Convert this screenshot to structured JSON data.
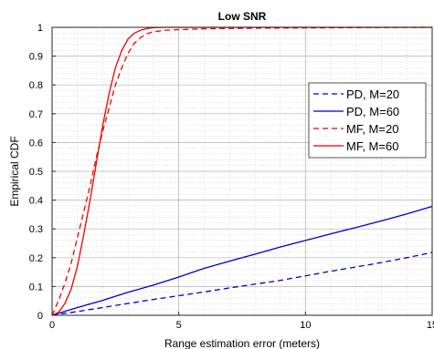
{
  "chart_data": {
    "type": "line",
    "title": "Low SNR",
    "xlabel": "Range estimation error (meters)",
    "ylabel": "Empirical CDF",
    "xlim": [
      0,
      15
    ],
    "ylim": [
      0,
      1
    ],
    "xticks": [
      0,
      5,
      10,
      15
    ],
    "yticks": [
      0,
      0.1,
      0.2,
      0.3,
      0.4,
      0.5,
      0.6,
      0.7,
      0.8,
      0.9,
      1
    ],
    "xtick_labels": [
      "0",
      "5",
      "10",
      "15"
    ],
    "ytick_labels": [
      "0",
      "0.1",
      "0.2",
      "0.3",
      "0.4",
      "0.5",
      "0.6",
      "0.7",
      "0.8",
      "0.9",
      "1"
    ],
    "grid": true,
    "minor_grid": true,
    "legend_position": "right",
    "series": [
      {
        "name": "PD, M=20",
        "color": "#0000cc",
        "dash": "dashed",
        "x": [
          0,
          1,
          2,
          3,
          4,
          5,
          6,
          7,
          8,
          9,
          10,
          11,
          12,
          13,
          14,
          15
        ],
        "y": [
          0,
          0.013,
          0.027,
          0.041,
          0.055,
          0.068,
          0.081,
          0.095,
          0.108,
          0.121,
          0.137,
          0.153,
          0.168,
          0.183,
          0.2,
          0.218
        ]
      },
      {
        "name": "PD, M=60",
        "color": "#0000cc",
        "dash": "solid",
        "x": [
          0,
          1,
          2,
          3,
          4,
          5,
          6,
          7,
          8,
          9,
          10,
          11,
          12,
          13,
          14,
          15
        ],
        "y": [
          0,
          0.027,
          0.052,
          0.08,
          0.105,
          0.133,
          0.163,
          0.188,
          0.212,
          0.237,
          0.26,
          0.283,
          0.305,
          0.328,
          0.352,
          0.378
        ]
      },
      {
        "name": "MF, M=20",
        "color": "#ee0000",
        "dash": "dashed",
        "x": [
          0,
          0.25,
          0.5,
          0.75,
          1,
          1.25,
          1.5,
          1.75,
          2,
          2.25,
          2.5,
          2.75,
          3,
          3.25,
          3.5,
          3.75,
          4,
          4.5,
          5,
          6,
          8,
          10,
          12,
          15
        ],
        "y": [
          0,
          0.05,
          0.11,
          0.18,
          0.27,
          0.36,
          0.45,
          0.55,
          0.64,
          0.72,
          0.8,
          0.86,
          0.91,
          0.945,
          0.965,
          0.978,
          0.985,
          0.99,
          0.992,
          0.995,
          0.997,
          0.998,
          0.999,
          1.0
        ]
      },
      {
        "name": "MF, M=60",
        "color": "#ee0000",
        "dash": "solid",
        "x": [
          0,
          0.25,
          0.5,
          0.75,
          1,
          1.25,
          1.5,
          1.75,
          2,
          2.25,
          2.5,
          2.75,
          3,
          3.25,
          3.5,
          3.75,
          4,
          4.5,
          5,
          6,
          8,
          10,
          12,
          15
        ],
        "y": [
          0,
          0.01,
          0.04,
          0.09,
          0.17,
          0.28,
          0.4,
          0.53,
          0.66,
          0.77,
          0.86,
          0.92,
          0.96,
          0.98,
          0.99,
          0.996,
          0.999,
          1.0,
          1.0,
          1.0,
          1.0,
          1.0,
          1.0,
          1.0
        ]
      }
    ]
  }
}
